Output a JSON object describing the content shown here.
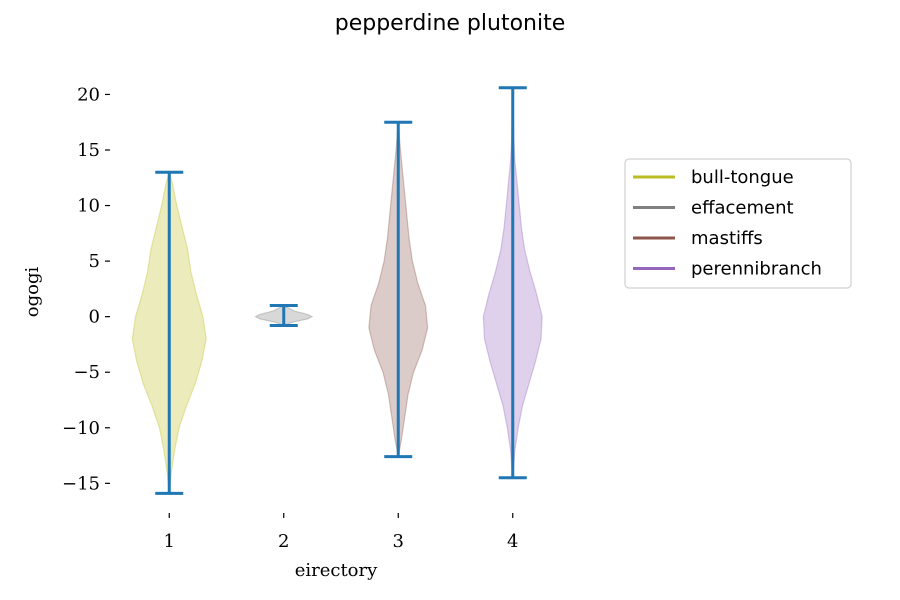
{
  "chart_data": {
    "type": "violin",
    "title": "pepperdine plutonite",
    "xlabel": "eirectory",
    "ylabel": "ogogi",
    "ylim": [
      -17.4,
      22.2
    ],
    "yticks": [
      20,
      15,
      10,
      5,
      0,
      -5,
      -10,
      -15
    ],
    "ytick_labels": [
      "20",
      "15",
      "10",
      "5",
      "0",
      "−5",
      "−10",
      "−15"
    ],
    "categories": [
      "1",
      "2",
      "3",
      "4"
    ],
    "grid": false,
    "legend_position": "right",
    "series": [
      {
        "name": "bull-tongue",
        "position": 1,
        "min": -15.9,
        "max": 13.0,
        "color": "#bcbd22",
        "density": [
          [
            -15.9,
            0.0
          ],
          [
            -14,
            0.02
          ],
          [
            -12,
            0.05
          ],
          [
            -10,
            0.09
          ],
          [
            -8,
            0.16
          ],
          [
            -6,
            0.24
          ],
          [
            -4,
            0.3
          ],
          [
            -2,
            0.34
          ],
          [
            0,
            0.31
          ],
          [
            2,
            0.25
          ],
          [
            4,
            0.2
          ],
          [
            6,
            0.17
          ],
          [
            8,
            0.12
          ],
          [
            10,
            0.07
          ],
          [
            12,
            0.03
          ],
          [
            13.0,
            0.0
          ]
        ]
      },
      {
        "name": "effacement",
        "position": 2,
        "min": -0.8,
        "max": 1.0,
        "color": "#7f7f7f",
        "density": [
          [
            -0.8,
            0.0
          ],
          [
            -0.5,
            0.08
          ],
          [
            -0.2,
            0.22
          ],
          [
            0,
            0.26
          ],
          [
            0.2,
            0.22
          ],
          [
            0.5,
            0.1
          ],
          [
            1.0,
            0.0
          ]
        ]
      },
      {
        "name": "mastiffs",
        "position": 3,
        "min": -12.6,
        "max": 17.5,
        "color": "#8c564b",
        "density": [
          [
            -12.6,
            0.0
          ],
          [
            -11,
            0.03
          ],
          [
            -9,
            0.06
          ],
          [
            -7,
            0.09
          ],
          [
            -5,
            0.14
          ],
          [
            -3,
            0.22
          ],
          [
            -1,
            0.27
          ],
          [
            1,
            0.25
          ],
          [
            3,
            0.18
          ],
          [
            5,
            0.13
          ],
          [
            7,
            0.1
          ],
          [
            9,
            0.08
          ],
          [
            11,
            0.06
          ],
          [
            13,
            0.04
          ],
          [
            15,
            0.02
          ],
          [
            17.5,
            0.0
          ]
        ]
      },
      {
        "name": "perennibranch",
        "position": 4,
        "min": -14.5,
        "max": 20.6,
        "color": "#9467bd",
        "density": [
          [
            -14.5,
            0.0
          ],
          [
            -12,
            0.02
          ],
          [
            -10,
            0.05
          ],
          [
            -8,
            0.09
          ],
          [
            -6,
            0.15
          ],
          [
            -4,
            0.21
          ],
          [
            -2,
            0.26
          ],
          [
            0,
            0.27
          ],
          [
            2,
            0.22
          ],
          [
            4,
            0.16
          ],
          [
            6,
            0.11
          ],
          [
            8,
            0.08
          ],
          [
            10,
            0.06
          ],
          [
            12,
            0.04
          ],
          [
            14,
            0.02
          ],
          [
            16,
            0.01
          ],
          [
            20.6,
            0.0
          ]
        ]
      }
    ],
    "whisker_color": "#1f77b4"
  }
}
